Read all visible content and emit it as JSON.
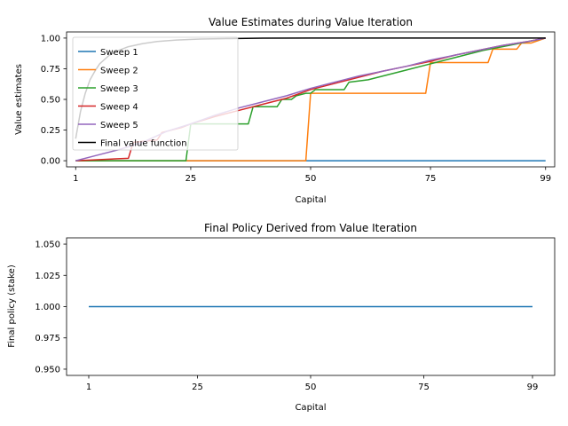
{
  "chart_data": [
    {
      "type": "line",
      "title": "Value Estimates during Value Iteration",
      "xlabel": "Capital",
      "ylabel": "Value estimates",
      "xlim": [
        -0.9,
        100.9
      ],
      "ylim": [
        -0.05,
        1.05
      ],
      "xticks": [
        1,
        25,
        50,
        75,
        99
      ],
      "yticks": [
        0.0,
        0.25,
        0.5,
        0.75,
        1.0
      ],
      "ytick_labels": [
        "0.00",
        "0.25",
        "0.50",
        "0.75",
        "1.00"
      ],
      "legend": "upper-left",
      "series": [
        {
          "name": "Sweep 1",
          "color": "#1f77b4",
          "points": [
            [
              1,
              0
            ],
            [
              99,
              0
            ]
          ]
        },
        {
          "name": "Sweep 2",
          "color": "#ff7f0e",
          "points": [
            [
              1,
              0
            ],
            [
              49,
              0
            ],
            [
              50,
              0.55
            ],
            [
              74,
              0.55
            ],
            [
              75,
              0.8
            ],
            [
              87,
              0.8
            ],
            [
              88,
              0.91
            ],
            [
              93,
              0.91
            ],
            [
              94,
              0.96
            ],
            [
              96,
              0.96
            ],
            [
              99,
              1.0
            ]
          ]
        },
        {
          "name": "Sweep 3",
          "color": "#2ca02c",
          "points": [
            [
              1,
              0
            ],
            [
              24,
              0
            ],
            [
              25,
              0.3
            ],
            [
              37,
              0.3
            ],
            [
              38,
              0.44
            ],
            [
              43,
              0.44
            ],
            [
              44,
              0.5
            ],
            [
              46,
              0.5
            ],
            [
              47,
              0.53
            ],
            [
              49,
              0.55
            ],
            [
              50,
              0.55
            ],
            [
              51,
              0.58
            ],
            [
              57,
              0.58
            ],
            [
              58,
              0.64
            ],
            [
              62,
              0.66
            ],
            [
              66,
              0.7
            ],
            [
              70,
              0.74
            ],
            [
              74,
              0.78
            ],
            [
              78,
              0.82
            ],
            [
              82,
              0.86
            ],
            [
              86,
              0.9
            ],
            [
              90,
              0.93
            ],
            [
              94,
              0.96
            ],
            [
              99,
              1.0
            ]
          ]
        },
        {
          "name": "Sweep 4",
          "color": "#d62728",
          "points": [
            [
              1,
              0
            ],
            [
              12,
              0.02
            ],
            [
              13,
              0.15
            ],
            [
              18,
              0.17
            ],
            [
              19,
              0.23
            ],
            [
              23,
              0.27
            ],
            [
              25,
              0.3
            ],
            [
              30,
              0.36
            ],
            [
              35,
              0.41
            ],
            [
              40,
              0.46
            ],
            [
              45,
              0.51
            ],
            [
              50,
              0.58
            ],
            [
              55,
              0.63
            ],
            [
              60,
              0.68
            ],
            [
              65,
              0.73
            ],
            [
              70,
              0.77
            ],
            [
              75,
              0.81
            ],
            [
              80,
              0.86
            ],
            [
              85,
              0.9
            ],
            [
              90,
              0.94
            ],
            [
              95,
              0.97
            ],
            [
              99,
              1.0
            ]
          ]
        },
        {
          "name": "Sweep 5",
          "color": "#9467bd",
          "points": [
            [
              1,
              0
            ],
            [
              5,
              0.04
            ],
            [
              10,
              0.09
            ],
            [
              15,
              0.15
            ],
            [
              20,
              0.24
            ],
            [
              25,
              0.3
            ],
            [
              30,
              0.37
            ],
            [
              35,
              0.43
            ],
            [
              40,
              0.48
            ],
            [
              45,
              0.53
            ],
            [
              50,
              0.59
            ],
            [
              55,
              0.64
            ],
            [
              60,
              0.69
            ],
            [
              65,
              0.73
            ],
            [
              70,
              0.77
            ],
            [
              75,
              0.82
            ],
            [
              80,
              0.86
            ],
            [
              85,
              0.9
            ],
            [
              90,
              0.94
            ],
            [
              95,
              0.97
            ],
            [
              99,
              1.0
            ]
          ]
        },
        {
          "name": "Final value function",
          "color": "#000000",
          "points": [
            [
              1,
              0.18
            ],
            [
              2,
              0.4
            ],
            [
              3,
              0.55
            ],
            [
              4,
              0.66
            ],
            [
              5,
              0.73
            ],
            [
              6,
              0.79
            ],
            [
              8,
              0.86
            ],
            [
              10,
              0.9
            ],
            [
              12,
              0.93
            ],
            [
              15,
              0.955
            ],
            [
              18,
              0.972
            ],
            [
              22,
              0.984
            ],
            [
              27,
              0.992
            ],
            [
              33,
              0.996
            ],
            [
              40,
              0.999
            ],
            [
              50,
              1.0
            ],
            [
              99,
              1.0
            ]
          ]
        }
      ]
    },
    {
      "type": "line",
      "title": "Final Policy Derived from Value Iteration",
      "xlabel": "Capital",
      "ylabel": "Final policy (stake)",
      "xlim": [
        -3.9,
        103.9
      ],
      "ylim": [
        0.945,
        1.055
      ],
      "xticks": [
        1,
        25,
        50,
        75,
        99
      ],
      "yticks": [
        0.95,
        0.975,
        1.0,
        1.025,
        1.05
      ],
      "ytick_labels": [
        "0.950",
        "0.975",
        "1.000",
        "1.025",
        "1.050"
      ],
      "series": [
        {
          "color": "#1f77b4",
          "points": [
            [
              1,
              1.0
            ],
            [
              99,
              1.0
            ]
          ]
        }
      ]
    }
  ]
}
